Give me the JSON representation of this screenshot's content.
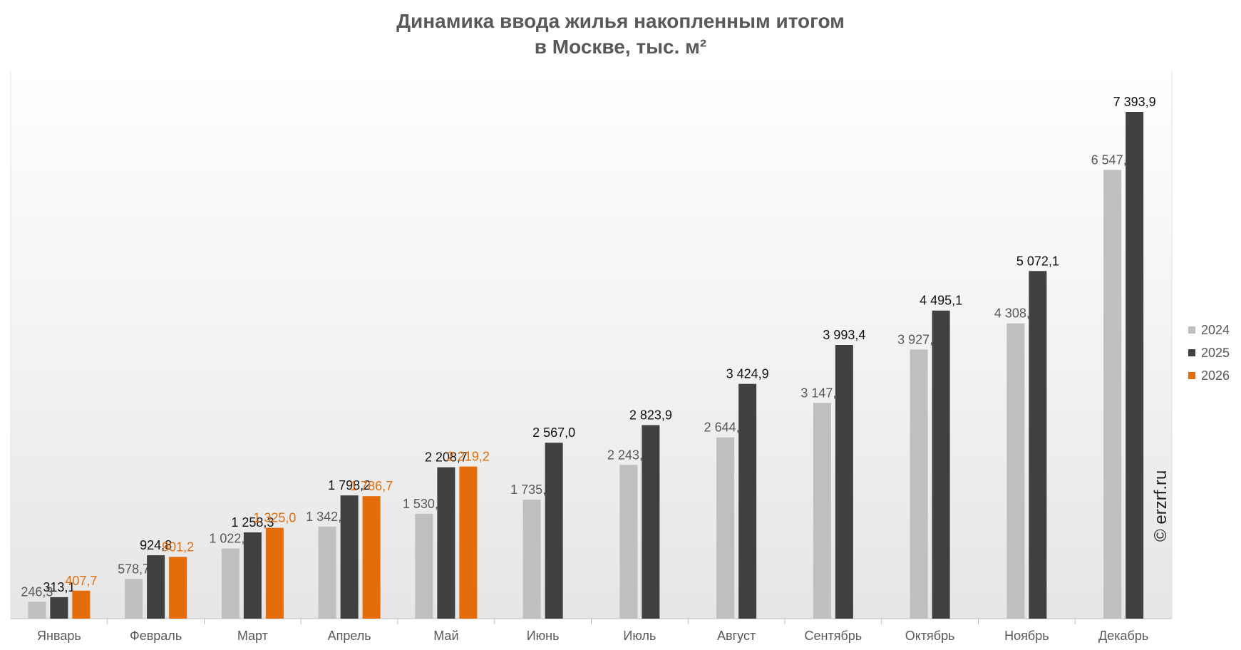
{
  "title": [
    "Динамика ввода жилья накопленным итогом",
    "в Москве, тыс. м²"
  ],
  "watermark": "© erzrf.ru",
  "colors": {
    "2024": "#bfbfbf",
    "2025": "#404040",
    "2026": "#e46c0a"
  },
  "chart_data": {
    "type": "bar",
    "title": "Динамика ввода жилья накопленным итогом в Москве, тыс. м²",
    "categories": [
      "Январь",
      "Февраль",
      "Март",
      "Апрель",
      "Май",
      "Июнь",
      "Июль",
      "Август",
      "Сентябрь",
      "Октябрь",
      "Ноябрь",
      "Декабрь"
    ],
    "series": [
      {
        "name": "2024",
        "color": "#bfbfbf",
        "values": [
          246.3,
          578.7,
          1022.3,
          1342.2,
          1530.4,
          1735.7,
          2243.6,
          2644.6,
          3147.7,
          3927.5,
          4308.4,
          6547.7
        ],
        "labels": [
          "246,3",
          "578,7",
          "1 022,3",
          "1 342,2",
          "1 530,4",
          "1 735,7",
          "2 243,6",
          "2 644,6",
          "3 147,7",
          "3 927,5",
          "4 308,4",
          "6 547,7"
        ]
      },
      {
        "name": "2025",
        "color": "#404040",
        "values": [
          313.1,
          924.8,
          1258.3,
          1798.2,
          2208.7,
          2567.0,
          2823.9,
          3424.9,
          3993.4,
          4495.1,
          5072.1,
          7393.9
        ],
        "labels": [
          "313,1",
          "924,8",
          "1 258,3",
          "1 798,2",
          "2 208,7",
          "2 567,0",
          "2 823,9",
          "3 424,9",
          "3 993,4",
          "4 495,1",
          "5 072,1",
          "7 393,9"
        ]
      },
      {
        "name": "2026",
        "color": "#e46c0a",
        "values": [
          407.7,
          901.2,
          1325.0,
          1786.7,
          2219.2,
          null,
          null,
          null,
          null,
          null,
          null,
          null
        ],
        "labels": [
          "407,7",
          "901,2",
          "1 325,0",
          "1 786,7",
          "2 219,2",
          "",
          "",
          "",
          "",
          "",
          "",
          ""
        ]
      }
    ],
    "ylim": [
      0,
      8000
    ],
    "grid": false,
    "legend": "right"
  }
}
